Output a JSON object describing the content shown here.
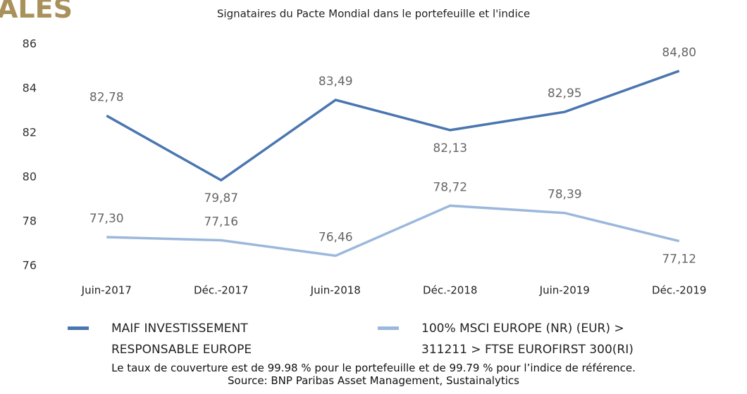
{
  "header": "ALES",
  "chart_data": {
    "type": "line",
    "title": "Signataires du Pacte Mondial dans le portefeuille et l'indice",
    "categories": [
      "Juin-2017",
      "Déc.-2017",
      "Juin-2018",
      "Déc.-2018",
      "Juin-2019",
      "Déc.-2019"
    ],
    "series": [
      {
        "name": "MAIF INVESTISSEMENT RESPONSABLE EUROPE",
        "color": "#4a76b0",
        "values": [
          82.78,
          79.87,
          83.49,
          82.13,
          82.95,
          84.8
        ],
        "value_labels": [
          "82,78",
          "79,87",
          "83,49",
          "82,13",
          "82,95",
          "84,80"
        ]
      },
      {
        "name": "100% MSCI EUROPE (NR) (EUR) > 311211 > FTSE EUROFIRST 300(RI)",
        "color": "#9bb8dc",
        "values": [
          77.3,
          77.16,
          76.46,
          78.72,
          78.39,
          77.12
        ],
        "value_labels": [
          "77,30",
          "77,16",
          "76,46",
          "78,72",
          "78,39",
          "77,12"
        ]
      }
    ],
    "ylim": [
      76,
      86
    ],
    "yticks": [
      76,
      78,
      80,
      82,
      84,
      86
    ],
    "grid": false,
    "legend": "bottom"
  },
  "notes": [
    "Le taux de couverture est de 99.98 % pour le portefeuille et de 99.79 % pour l’indice de référence.",
    "Source: BNP Paribas Asset Management, Sustainalytics"
  ]
}
